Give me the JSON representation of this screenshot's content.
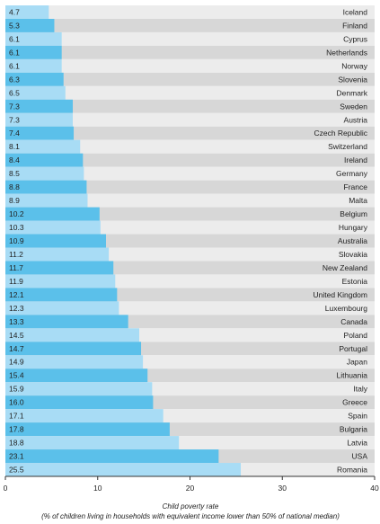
{
  "chart_data": {
    "type": "bar",
    "orientation": "horizontal",
    "categories": [
      "Iceland",
      "Finland",
      "Cyprus",
      "Netherlands",
      "Norway",
      "Slovenia",
      "Denmark",
      "Sweden",
      "Austria",
      "Czech Republic",
      "Switzerland",
      "Ireland",
      "Germany",
      "France",
      "Malta",
      "Belgium",
      "Hungary",
      "Australia",
      "Slovakia",
      "New Zealand",
      "Estonia",
      "United Kingdom",
      "Luxembourg",
      "Canada",
      "Poland",
      "Portugal",
      "Japan",
      "Lithuania",
      "Italy",
      "Greece",
      "Spain",
      "Bulgaria",
      "Latvia",
      "USA",
      "Romania"
    ],
    "values": [
      4.7,
      5.3,
      6.1,
      6.1,
      6.1,
      6.3,
      6.5,
      7.3,
      7.3,
      7.4,
      8.1,
      8.4,
      8.5,
      8.8,
      8.9,
      10.2,
      10.3,
      10.9,
      11.2,
      11.7,
      11.9,
      12.1,
      12.3,
      13.3,
      14.5,
      14.7,
      14.9,
      15.4,
      15.9,
      16.0,
      17.1,
      17.8,
      18.8,
      23.1,
      25.5
    ],
    "value_labels": [
      "4.7",
      "5.3",
      "6.1",
      "6.1",
      "6.1",
      "6.3",
      "6.5",
      "7.3",
      "7.3",
      "7.4",
      "8.1",
      "8.4",
      "8.5",
      "8.8",
      "8.9",
      "10.2",
      "10.3",
      "10.9",
      "11.2",
      "11.7",
      "11.9",
      "12.1",
      "12.3",
      "13.3",
      "14.5",
      "14.7",
      "14.9",
      "15.4",
      "15.9",
      "16.0",
      "17.1",
      "17.8",
      "18.8",
      "23.1",
      "25.5"
    ],
    "xlim": [
      0,
      40
    ],
    "xticks": [
      "0",
      "10",
      "20",
      "30",
      "40"
    ],
    "xlabel_line1": "Child poverty rate",
    "xlabel_line2": "(% of children living in households with equivalent income lower than 50% of national median)",
    "grid": false,
    "colors": {
      "bar_dark": "#5bc0ea",
      "bar_light": "#a8dcf5",
      "band_dark": "#d7d7d7",
      "band_light": "#ececec",
      "axis": "#333333"
    }
  }
}
